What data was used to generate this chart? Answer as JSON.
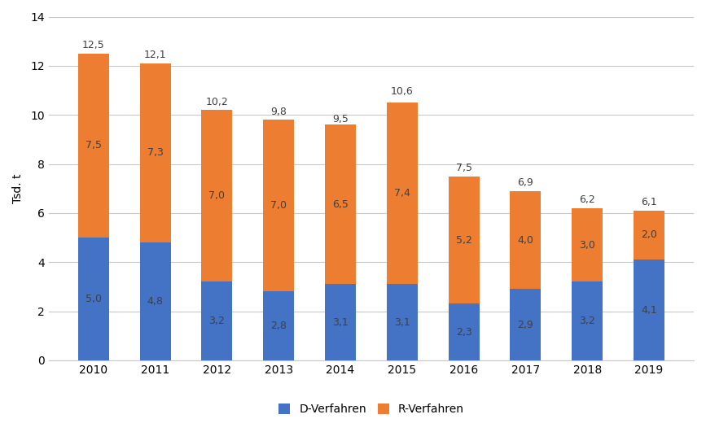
{
  "years": [
    2010,
    2011,
    2012,
    2013,
    2014,
    2015,
    2016,
    2017,
    2018,
    2019
  ],
  "d_verfahren": [
    5.0,
    4.8,
    3.2,
    2.8,
    3.1,
    3.1,
    2.3,
    2.9,
    3.2,
    4.1
  ],
  "r_verfahren": [
    7.5,
    7.3,
    7.0,
    7.0,
    6.5,
    7.4,
    5.2,
    4.0,
    3.0,
    2.0
  ],
  "totals": [
    12.5,
    12.1,
    10.2,
    9.8,
    9.5,
    10.6,
    7.5,
    6.9,
    6.2,
    6.1
  ],
  "color_d": "#4472C4",
  "color_r": "#ED7D31",
  "ylabel": "Tsd. t",
  "ylim": [
    0,
    14
  ],
  "yticks": [
    0,
    2,
    4,
    6,
    8,
    10,
    12,
    14
  ],
  "legend_d": "D-Verfahren",
  "legend_r": "R-Verfahren",
  "bar_width": 0.5,
  "background_color": "#ffffff",
  "grid_color": "#c8c8c8",
  "label_fontsize": 9,
  "axis_fontsize": 10,
  "legend_fontsize": 10,
  "label_color_inside": "#404040",
  "label_color_total": "#404040"
}
